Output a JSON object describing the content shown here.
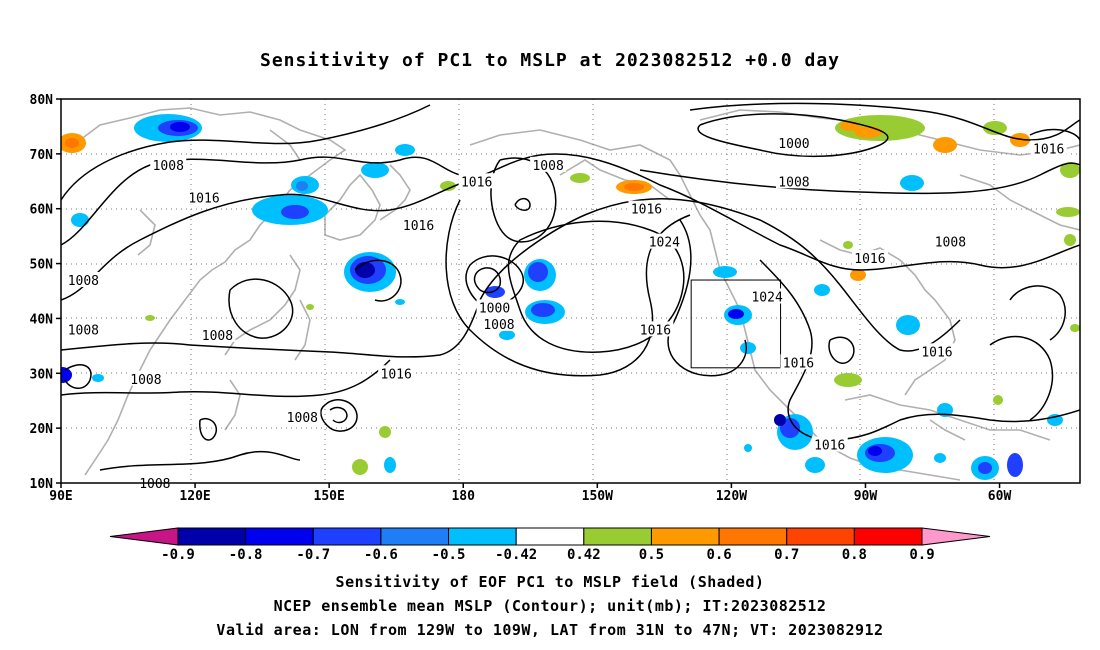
{
  "title": "Sensitivity of PC1 to MSLP at 2023082512 +0.0 day",
  "lat_labels": [
    "80N",
    "70N",
    "60N",
    "50N",
    "40N",
    "30N",
    "20N",
    "10N"
  ],
  "lon_labels": [
    "90E",
    "120E",
    "150E",
    "180",
    "150W",
    "120W",
    "90W",
    "60W"
  ],
  "contour_labels": [
    {
      "text": "1000",
      "lon": -106,
      "lat": 72
    },
    {
      "text": "1016",
      "lon": -49,
      "lat": 71
    },
    {
      "text": "1008",
      "lon": 114,
      "lat": 68
    },
    {
      "text": "1008",
      "lon": -161,
      "lat": 68
    },
    {
      "text": "1016",
      "lon": -177,
      "lat": 65
    },
    {
      "text": "1008",
      "lon": -106,
      "lat": 65
    },
    {
      "text": "1016",
      "lon": 122,
      "lat": 62
    },
    {
      "text": "1016",
      "lon": -139,
      "lat": 60
    },
    {
      "text": "1016",
      "lon": 170,
      "lat": 57
    },
    {
      "text": "1024",
      "lon": -135,
      "lat": 54
    },
    {
      "text": "1008",
      "lon": -71,
      "lat": 54
    },
    {
      "text": "1016",
      "lon": -89,
      "lat": 51
    },
    {
      "text": "1008",
      "lon": 95,
      "lat": 47
    },
    {
      "text": "1024",
      "lon": -112,
      "lat": 44
    },
    {
      "text": "1000",
      "lon": -173,
      "lat": 42
    },
    {
      "text": "1008",
      "lon": -172,
      "lat": 39
    },
    {
      "text": "1008",
      "lon": 95,
      "lat": 38
    },
    {
      "text": "1016",
      "lon": -137,
      "lat": 38
    },
    {
      "text": "1008",
      "lon": 125,
      "lat": 37
    },
    {
      "text": "1016",
      "lon": -105,
      "lat": 32
    },
    {
      "text": "1016",
      "lon": -74,
      "lat": 34
    },
    {
      "text": "1016",
      "lon": 165,
      "lat": 30
    },
    {
      "text": "1008",
      "lon": 109,
      "lat": 29
    },
    {
      "text": "1008",
      "lon": 144,
      "lat": 22
    },
    {
      "text": "1016",
      "lon": -98,
      "lat": 17
    },
    {
      "text": "1008",
      "lon": 111,
      "lat": 10
    }
  ],
  "sensitivity_bins": [
    {
      "lower": -1.0,
      "upper": -0.9,
      "color": "#c71585"
    },
    {
      "lower": -0.9,
      "upper": -0.8,
      "color": "#0000aa"
    },
    {
      "lower": -0.8,
      "upper": -0.7,
      "color": "#0000ee"
    },
    {
      "lower": -0.7,
      "upper": -0.6,
      "color": "#2040ff"
    },
    {
      "lower": -0.6,
      "upper": -0.5,
      "color": "#1e7ef5"
    },
    {
      "lower": -0.5,
      "upper": -0.42,
      "color": "#00bfff"
    },
    {
      "lower": -0.42,
      "upper": 0.42,
      "color": "#ffffff"
    },
    {
      "lower": 0.42,
      "upper": 0.5,
      "color": "#99cc33"
    },
    {
      "lower": 0.5,
      "upper": 0.6,
      "color": "#ff9900"
    },
    {
      "lower": 0.6,
      "upper": 0.7,
      "color": "#ff7700"
    },
    {
      "lower": 0.7,
      "upper": 0.8,
      "color": "#ff4400"
    },
    {
      "lower": 0.8,
      "upper": 0.9,
      "color": "#ff0000"
    },
    {
      "lower": 0.9,
      "upper": 1.0,
      "color": "#ff99cc"
    }
  ],
  "colorbar_labels": [
    "-0.9",
    "-0.8",
    "-0.7",
    "-0.6",
    "-0.5",
    "-0.42",
    "0.42",
    "0.5",
    "0.6",
    "0.7",
    "0.8",
    "0.9"
  ],
  "caption": {
    "line1": "Sensitivity of EOF PC1 to MSLP field (Shaded)",
    "line2": "NCEP ensemble mean MSLP (Contour); unit(mb); IT:2023082512",
    "line3": "Valid area: LON from 129W to 109W, LAT from 31N to 47N; VT: 2023082912"
  },
  "valid_area": {
    "lon_w": -129,
    "lon_e": -109,
    "lat_s": 31,
    "lat_n": 47
  }
}
